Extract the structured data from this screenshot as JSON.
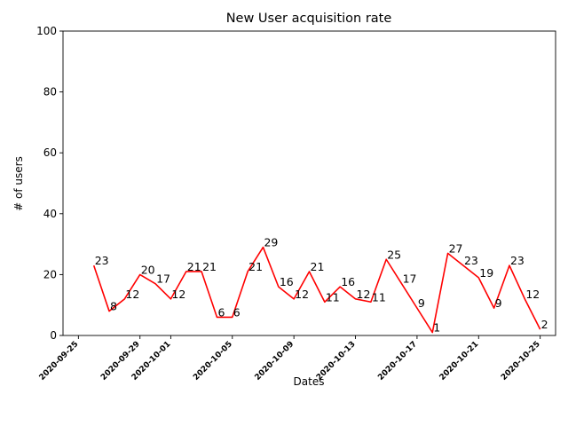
{
  "chart_data": {
    "type": "line",
    "title": "New User acquisition rate",
    "xlabel": "Dates",
    "ylabel": "# of users",
    "ylim": [
      0,
      100
    ],
    "xlim": [
      "2020-09-24",
      "2020-10-26"
    ],
    "yticks": [
      0,
      20,
      40,
      60,
      80,
      100
    ],
    "xticks": [
      "2020-09-25",
      "2020-09-29",
      "2020-10-01",
      "2020-10-05",
      "2020-10-09",
      "2020-10-13",
      "2020-10-17",
      "2020-10-21",
      "2020-10-25"
    ],
    "line_color": "#ff0000",
    "grid": false,
    "series": [
      {
        "x": [
          "2020-09-26",
          "2020-09-27",
          "2020-09-28",
          "2020-09-29",
          "2020-09-30",
          "2020-10-01",
          "2020-10-02",
          "2020-10-03",
          "2020-10-04",
          "2020-10-05",
          "2020-10-06",
          "2020-10-07",
          "2020-10-08",
          "2020-10-09",
          "2020-10-10",
          "2020-10-11",
          "2020-10-12",
          "2020-10-13",
          "2020-10-14",
          "2020-10-15",
          "2020-10-16",
          "2020-10-17",
          "2020-10-18",
          "2020-10-19",
          "2020-10-20",
          "2020-10-21",
          "2020-10-22",
          "2020-10-23",
          "2020-10-24",
          "2020-10-25"
        ],
        "values": [
          23,
          8,
          12,
          20,
          17,
          12,
          21,
          21,
          6,
          6,
          21,
          29,
          16,
          12,
          21,
          11,
          16,
          12,
          11,
          25,
          17,
          9,
          1,
          27,
          23,
          19,
          9,
          23,
          12,
          2
        ]
      }
    ]
  }
}
